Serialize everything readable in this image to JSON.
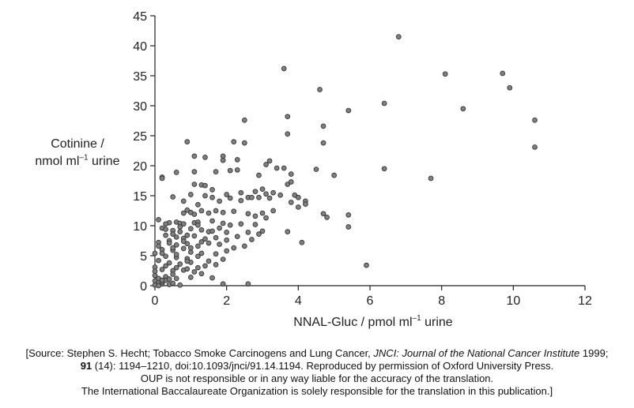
{
  "chart_data": {
    "type": "scatter",
    "xlabel": "NNAL-Gluc / pmol ml",
    "xlabel_exp": "–1",
    "xlabel_tail": " urine",
    "ylabel_line1": "Cotinine /",
    "ylabel_line2_pre": "nmol ml",
    "ylabel_exp": "–1",
    "ylabel_line2_post": " urine",
    "xlim": [
      0,
      12
    ],
    "ylim": [
      0,
      45
    ],
    "xticks": [
      "0",
      "2",
      "4",
      "6",
      "8",
      "10",
      "12"
    ],
    "yticks": [
      "0",
      "5",
      "10",
      "15",
      "20",
      "25",
      "30",
      "35",
      "40",
      "45"
    ],
    "marker_color": "#808080",
    "points": [
      [
        6.8,
        41.5
      ],
      [
        3.6,
        36.2
      ],
      [
        8.1,
        35.3
      ],
      [
        9.7,
        35.4
      ],
      [
        9.9,
        33.0
      ],
      [
        4.6,
        32.7
      ],
      [
        6.4,
        30.4
      ],
      [
        5.4,
        29.2
      ],
      [
        8.6,
        29.5
      ],
      [
        3.7,
        28.2
      ],
      [
        10.6,
        27.6
      ],
      [
        2.5,
        27.6
      ],
      [
        4.7,
        26.6
      ],
      [
        3.7,
        25.3
      ],
      [
        0.9,
        24.0
      ],
      [
        2.2,
        24.0
      ],
      [
        2.5,
        23.8
      ],
      [
        4.7,
        23.8
      ],
      [
        10.6,
        23.1
      ],
      [
        1.1,
        21.6
      ],
      [
        1.4,
        21.4
      ],
      [
        1.9,
        21.6
      ],
      [
        2.3,
        21.0
      ],
      [
        3.2,
        20.8
      ],
      [
        3.1,
        20.2
      ],
      [
        3.4,
        19.6
      ],
      [
        1.9,
        20.9
      ],
      [
        2.1,
        19.2
      ],
      [
        2.3,
        19.3
      ],
      [
        1.7,
        19.0
      ],
      [
        1.1,
        19.0
      ],
      [
        0.6,
        18.9
      ],
      [
        0.2,
        18.1
      ],
      [
        0.2,
        17.9
      ],
      [
        2.9,
        18.4
      ],
      [
        3.6,
        19.6
      ],
      [
        3.8,
        18.6
      ],
      [
        4.5,
        19.4
      ],
      [
        5.0,
        18.4
      ],
      [
        6.4,
        19.5
      ],
      [
        7.7,
        17.9
      ],
      [
        1.1,
        16.9
      ],
      [
        1.6,
        16.0
      ],
      [
        1.3,
        16.8
      ],
      [
        1.4,
        16.7
      ],
      [
        2.0,
        15.2
      ],
      [
        2.4,
        15.5
      ],
      [
        2.6,
        14.7
      ],
      [
        2.8,
        15.7
      ],
      [
        3.0,
        16.1
      ],
      [
        3.1,
        15.3
      ],
      [
        3.3,
        15.5
      ],
      [
        3.2,
        14.6
      ],
      [
        2.9,
        14.7
      ],
      [
        2.7,
        14.7
      ],
      [
        3.5,
        15.1
      ],
      [
        3.7,
        16.9
      ],
      [
        3.8,
        17.3
      ],
      [
        3.9,
        15.1
      ],
      [
        4.0,
        14.7
      ],
      [
        4.2,
        14.1
      ],
      [
        3.8,
        13.9
      ],
      [
        0.5,
        14.8
      ],
      [
        0.8,
        14.1
      ],
      [
        1.0,
        15.2
      ],
      [
        1.2,
        13.5
      ],
      [
        1.4,
        15.0
      ],
      [
        1.6,
        14.7
      ],
      [
        1.8,
        14.1
      ],
      [
        2.1,
        14.6
      ],
      [
        2.4,
        14.2
      ],
      [
        0.8,
        12.1
      ],
      [
        0.9,
        12.6
      ],
      [
        1.0,
        12.2
      ],
      [
        1.1,
        11.9
      ],
      [
        1.3,
        12.5
      ],
      [
        1.5,
        12.1
      ],
      [
        1.7,
        12.5
      ],
      [
        1.9,
        12.2
      ],
      [
        2.2,
        12.4
      ],
      [
        2.6,
        12.0
      ],
      [
        2.8,
        11.6
      ],
      [
        3.0,
        12.1
      ],
      [
        3.3,
        12.5
      ],
      [
        4.0,
        13.1
      ],
      [
        4.2,
        13.6
      ],
      [
        4.7,
        12.0
      ],
      [
        4.8,
        11.4
      ],
      [
        5.4,
        11.8
      ],
      [
        0.1,
        11.0
      ],
      [
        0.4,
        10.5
      ],
      [
        0.6,
        10.6
      ],
      [
        0.7,
        10.4
      ],
      [
        0.8,
        10.3
      ],
      [
        1.1,
        10.5
      ],
      [
        1.2,
        10.6
      ],
      [
        1.6,
        10.8
      ],
      [
        1.9,
        10.4
      ],
      [
        2.1,
        10.1
      ],
      [
        2.4,
        10.3
      ],
      [
        2.8,
        10.2
      ],
      [
        3.1,
        11.3
      ],
      [
        5.4,
        9.8
      ],
      [
        0.2,
        9.6
      ],
      [
        0.3,
        9.4
      ],
      [
        0.5,
        9.2
      ],
      [
        0.7,
        9.0
      ],
      [
        1.0,
        9.5
      ],
      [
        1.3,
        9.3
      ],
      [
        1.5,
        9.0
      ],
      [
        1.8,
        9.6
      ],
      [
        2.0,
        8.9
      ],
      [
        2.6,
        8.9
      ],
      [
        2.9,
        8.6
      ],
      [
        3.0,
        9.1
      ],
      [
        3.7,
        9.0
      ],
      [
        0.3,
        8.4
      ],
      [
        0.6,
        8.1
      ],
      [
        0.8,
        7.9
      ],
      [
        1.1,
        8.3
      ],
      [
        1.4,
        7.8
      ],
      [
        1.7,
        8.0
      ],
      [
        2.0,
        7.6
      ],
      [
        2.3,
        8.2
      ],
      [
        2.7,
        7.7
      ],
      [
        4.1,
        7.2
      ],
      [
        0.1,
        7.2
      ],
      [
        0.4,
        7.5
      ],
      [
        0.6,
        6.8
      ],
      [
        0.9,
        7.0
      ],
      [
        1.2,
        6.6
      ],
      [
        1.5,
        7.1
      ],
      [
        1.8,
        6.9
      ],
      [
        2.2,
        6.3
      ],
      [
        2.5,
        6.6
      ],
      [
        0.2,
        6.0
      ],
      [
        0.5,
        5.9
      ],
      [
        0.8,
        6.2
      ],
      [
        1.0,
        5.6
      ],
      [
        1.3,
        5.4
      ],
      [
        1.7,
        5.3
      ],
      [
        2.0,
        5.8
      ],
      [
        0.0,
        5.4
      ],
      [
        0.3,
        4.9
      ],
      [
        0.6,
        4.7
      ],
      [
        0.9,
        4.5
      ],
      [
        1.2,
        4.9
      ],
      [
        1.5,
        4.1
      ],
      [
        1.9,
        4.4
      ],
      [
        0.1,
        4.2
      ],
      [
        0.4,
        3.8
      ],
      [
        0.7,
        3.6
      ],
      [
        1.0,
        3.9
      ],
      [
        1.4,
        3.3
      ],
      [
        1.7,
        3.5
      ],
      [
        0.0,
        3.1
      ],
      [
        0.2,
        2.7
      ],
      [
        0.5,
        2.5
      ],
      [
        0.8,
        2.6
      ],
      [
        1.1,
        2.3
      ],
      [
        1.3,
        2.0
      ],
      [
        0.0,
        1.7
      ],
      [
        0.3,
        1.5
      ],
      [
        0.6,
        1.2
      ],
      [
        1.0,
        1.4
      ],
      [
        1.6,
        1.3
      ],
      [
        0.0,
        0.8
      ],
      [
        0.1,
        0.5
      ],
      [
        0.2,
        0.3
      ],
      [
        0.4,
        0.2
      ],
      [
        0.7,
        0.1
      ],
      [
        1.9,
        0.3
      ],
      [
        2.6,
        0.3
      ],
      [
        5.9,
        3.4
      ],
      [
        0.0,
        0.1
      ],
      [
        0.1,
        0.0
      ],
      [
        0.2,
        0.6
      ],
      [
        0.3,
        0.9
      ],
      [
        0.5,
        0.4
      ],
      [
        0.2,
        5.4
      ],
      [
        0.1,
        6.6
      ],
      [
        0.4,
        7.1
      ],
      [
        0.6,
        5.2
      ],
      [
        0.9,
        4.1
      ],
      [
        1.2,
        3.0
      ],
      [
        0.3,
        3.3
      ],
      [
        0.5,
        1.9
      ],
      [
        0.0,
        2.4
      ],
      [
        0.1,
        1.2
      ],
      [
        0.2,
        0.9
      ],
      [
        0.4,
        1.1
      ],
      [
        0.3,
        10.3
      ],
      [
        0.5,
        8.6
      ],
      [
        0.7,
        9.8
      ],
      [
        0.9,
        8.4
      ],
      [
        1.2,
        10.1
      ],
      [
        1.6,
        9.1
      ],
      [
        1.0,
        6.3
      ],
      [
        1.3,
        7.3
      ],
      [
        0.5,
        6.3
      ],
      [
        0.8,
        7.4
      ],
      [
        0.6,
        3.0
      ],
      [
        0.9,
        2.8
      ]
    ]
  },
  "source": {
    "line1_pre": "[Source: Stephen S. Hecht; Tobacco Smoke Carcinogens and Lung Cancer, ",
    "line1_journal": "JNCI: Journal of the National Cancer Institute",
    "line1_post": " 1999;",
    "line2_volume": "91",
    "line2_rest": " (14): 1194–1210, doi:10.1093/jnci/91.14.1194. Reproduced by permission of Oxford University Press.",
    "line3": "OUP is not responsible or in any way liable for the accuracy of the translation.",
    "line4": "The International Baccalaureate Organization is solely responsible for the translation in this publication.]"
  }
}
